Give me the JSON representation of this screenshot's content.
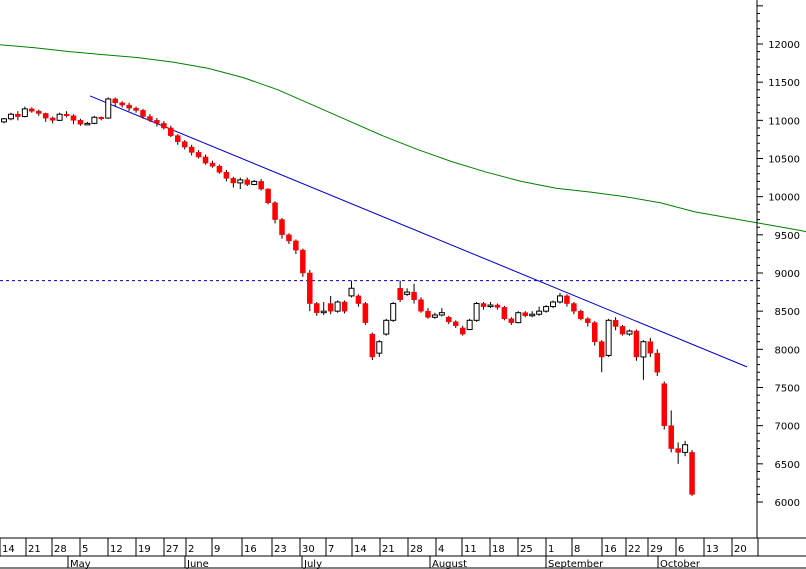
{
  "chart_data": {
    "type": "candlestick",
    "y_axis": {
      "position": "right",
      "ticks": [
        6000,
        6500,
        7000,
        7500,
        8000,
        8500,
        9000,
        9500,
        10000,
        10500,
        11000,
        11500,
        12000
      ],
      "ylim": [
        5700,
        12550
      ]
    },
    "x_axis": {
      "day_ticks": [
        "14",
        "21",
        "28",
        "5",
        "12",
        "19",
        "27",
        "2",
        "9",
        "16",
        "23",
        "30",
        "7",
        "14",
        "21",
        "28",
        "4",
        "11",
        "18",
        "25",
        "1",
        "8",
        "16",
        "22",
        "29",
        "6",
        "13",
        "20"
      ],
      "months": [
        "May",
        "June",
        "July",
        "August",
        "September",
        "October"
      ]
    },
    "horizontal_line": {
      "value": 8900,
      "style": "dashed",
      "color": "#0000cc"
    },
    "trend_line": {
      "from": [
        20,
        11320
      ],
      "to": [
        142,
        7770
      ],
      "color": "#0000cc"
    },
    "moving_average": {
      "color": "#008000",
      "points": [
        [
          0,
          11990
        ],
        [
          5,
          11950
        ],
        [
          10,
          11900
        ],
        [
          15,
          11860
        ],
        [
          20,
          11820
        ],
        [
          25,
          11760
        ],
        [
          30,
          11680
        ],
        [
          35,
          11560
        ],
        [
          40,
          11400
        ],
        [
          45,
          11200
        ],
        [
          50,
          11000
        ],
        [
          55,
          10800
        ],
        [
          60,
          10620
        ],
        [
          65,
          10460
        ],
        [
          70,
          10320
        ],
        [
          75,
          10200
        ],
        [
          80,
          10110
        ],
        [
          85,
          10060
        ],
        [
          90,
          10000
        ],
        [
          95,
          9920
        ],
        [
          100,
          9800
        ],
        [
          105,
          9720
        ],
        [
          110,
          9640
        ],
        [
          115,
          9560
        ],
        [
          118,
          9500
        ]
      ]
    },
    "candles": [
      [
        0,
        10980,
        11020,
        10960,
        11030,
        "up"
      ],
      [
        1,
        11020,
        11080,
        11000,
        11100,
        "up"
      ],
      [
        2,
        11080,
        11050,
        11000,
        11120,
        "down"
      ],
      [
        3,
        11050,
        11150,
        11040,
        11180,
        "up"
      ],
      [
        4,
        11150,
        11120,
        11100,
        11170,
        "down"
      ],
      [
        5,
        11120,
        11090,
        11060,
        11140,
        "down"
      ],
      [
        6,
        11090,
        11030,
        10980,
        11100,
        "down"
      ],
      [
        7,
        11030,
        11000,
        10960,
        11050,
        "down"
      ],
      [
        8,
        11000,
        11080,
        10990,
        11100,
        "up"
      ],
      [
        9,
        11080,
        11060,
        11040,
        11120,
        "down"
      ],
      [
        10,
        11060,
        11000,
        10950,
        11080,
        "down"
      ],
      [
        11,
        11000,
        10950,
        10930,
        11020,
        "down"
      ],
      [
        12,
        10950,
        10960,
        10940,
        10980,
        "up"
      ],
      [
        13,
        10960,
        11040,
        10950,
        11060,
        "up"
      ],
      [
        14,
        11040,
        11030,
        11000,
        11050,
        "down"
      ],
      [
        15,
        11030,
        11280,
        11020,
        11300,
        "up"
      ],
      [
        16,
        11280,
        11230,
        11180,
        11300,
        "down"
      ],
      [
        17,
        11230,
        11200,
        11170,
        11250,
        "down"
      ],
      [
        18,
        11200,
        11160,
        11120,
        11230,
        "down"
      ],
      [
        19,
        11160,
        11130,
        11100,
        11180,
        "down"
      ],
      [
        20,
        11130,
        11050,
        11020,
        11150,
        "down"
      ],
      [
        21,
        11050,
        11000,
        10980,
        11080,
        "down"
      ],
      [
        22,
        11000,
        10960,
        10920,
        11030,
        "down"
      ],
      [
        23,
        10960,
        10900,
        10880,
        10990,
        "down"
      ],
      [
        24,
        10900,
        10800,
        10780,
        10930,
        "down"
      ],
      [
        25,
        10800,
        10720,
        10680,
        10820,
        "down"
      ],
      [
        26,
        10720,
        10650,
        10620,
        10740,
        "down"
      ],
      [
        27,
        10650,
        10580,
        10540,
        10680,
        "down"
      ],
      [
        28,
        10580,
        10520,
        10500,
        10610,
        "down"
      ],
      [
        29,
        10520,
        10440,
        10420,
        10550,
        "down"
      ],
      [
        30,
        10440,
        10400,
        10380,
        10470,
        "down"
      ],
      [
        31,
        10400,
        10320,
        10300,
        10420,
        "down"
      ],
      [
        32,
        10320,
        10240,
        10200,
        10350,
        "down"
      ],
      [
        33,
        10240,
        10180,
        10120,
        10260,
        "down"
      ],
      [
        34,
        10180,
        10220,
        10100,
        10250,
        "up"
      ],
      [
        35,
        10220,
        10160,
        10140,
        10250,
        "down"
      ],
      [
        36,
        10160,
        10200,
        10150,
        10220,
        "up"
      ],
      [
        37,
        10200,
        10100,
        10080,
        10230,
        "down"
      ],
      [
        38,
        10100,
        9920,
        9900,
        10110,
        "down"
      ],
      [
        39,
        9920,
        9700,
        9650,
        9940,
        "down"
      ],
      [
        40,
        9700,
        9500,
        9450,
        9720,
        "down"
      ],
      [
        41,
        9500,
        9420,
        9380,
        9520,
        "down"
      ],
      [
        42,
        9420,
        9300,
        9250,
        9440,
        "down"
      ],
      [
        43,
        9300,
        9000,
        8950,
        9320,
        "down"
      ],
      [
        44,
        9000,
        8600,
        8500,
        9040,
        "down"
      ],
      [
        45,
        8600,
        8480,
        8440,
        8620,
        "down"
      ],
      [
        46,
        8480,
        8500,
        8450,
        8620,
        "up"
      ],
      [
        47,
        8600,
        8500,
        8460,
        8700,
        "down"
      ],
      [
        48,
        8500,
        8620,
        8480,
        8640,
        "up"
      ],
      [
        49,
        8620,
        8500,
        8470,
        8640,
        "down"
      ],
      [
        50,
        8700,
        8800,
        8680,
        8900,
        "up"
      ],
      [
        51,
        8700,
        8600,
        8560,
        8720,
        "down"
      ],
      [
        52,
        8600,
        8350,
        8320,
        8620,
        "down"
      ],
      [
        53,
        8200,
        7900,
        7860,
        8220,
        "down"
      ],
      [
        54,
        7950,
        8100,
        7900,
        8120,
        "up"
      ],
      [
        55,
        8200,
        8380,
        8180,
        8400,
        "up"
      ],
      [
        56,
        8380,
        8600,
        8360,
        8620,
        "up"
      ],
      [
        57,
        8800,
        8650,
        8620,
        8900,
        "down"
      ],
      [
        58,
        8720,
        8750,
        8700,
        8800,
        "up"
      ],
      [
        59,
        8750,
        8650,
        8600,
        8860,
        "down"
      ],
      [
        60,
        8650,
        8500,
        8480,
        8680,
        "down"
      ],
      [
        61,
        8500,
        8420,
        8400,
        8540,
        "down"
      ],
      [
        62,
        8420,
        8450,
        8400,
        8480,
        "up"
      ],
      [
        63,
        8450,
        8480,
        8430,
        8540,
        "up"
      ],
      [
        64,
        8420,
        8360,
        8330,
        8440,
        "down"
      ],
      [
        65,
        8360,
        8310,
        8280,
        8380,
        "down"
      ],
      [
        66,
        8280,
        8200,
        8180,
        8310,
        "down"
      ],
      [
        67,
        8260,
        8380,
        8250,
        8400,
        "up"
      ],
      [
        68,
        8380,
        8600,
        8360,
        8620,
        "up"
      ],
      [
        69,
        8600,
        8560,
        8520,
        8620,
        "down"
      ],
      [
        70,
        8560,
        8580,
        8540,
        8620,
        "up"
      ],
      [
        71,
        8580,
        8550,
        8520,
        8600,
        "down"
      ],
      [
        72,
        8550,
        8400,
        8380,
        8570,
        "down"
      ],
      [
        73,
        8400,
        8350,
        8320,
        8420,
        "down"
      ],
      [
        74,
        8350,
        8480,
        8340,
        8500,
        "up"
      ],
      [
        75,
        8480,
        8440,
        8420,
        8500,
        "down"
      ],
      [
        76,
        8440,
        8460,
        8420,
        8500,
        "up"
      ],
      [
        77,
        8460,
        8500,
        8440,
        8560,
        "up"
      ],
      [
        78,
        8500,
        8560,
        8480,
        8580,
        "up"
      ],
      [
        79,
        8560,
        8620,
        8540,
        8640,
        "up"
      ],
      [
        80,
        8620,
        8700,
        8600,
        8740,
        "up"
      ],
      [
        81,
        8700,
        8600,
        8560,
        8720,
        "down"
      ],
      [
        82,
        8600,
        8500,
        8460,
        8620,
        "down"
      ],
      [
        83,
        8500,
        8400,
        8380,
        8520,
        "down"
      ],
      [
        84,
        8400,
        8350,
        8300,
        8420,
        "down"
      ],
      [
        85,
        8350,
        8100,
        8050,
        8370,
        "down"
      ],
      [
        86,
        8100,
        7900,
        7700,
        8120,
        "down"
      ],
      [
        87,
        7920,
        8380,
        7900,
        8400,
        "up"
      ],
      [
        88,
        8380,
        8300,
        8250,
        8420,
        "down"
      ],
      [
        89,
        8300,
        8200,
        8180,
        8320,
        "down"
      ],
      [
        90,
        8200,
        8240,
        8180,
        8260,
        "up"
      ],
      [
        91,
        8240,
        7900,
        7850,
        8260,
        "down"
      ],
      [
        92,
        7900,
        8100,
        7600,
        8120,
        "up"
      ],
      [
        93,
        8100,
        7950,
        7900,
        8150,
        "down"
      ],
      [
        94,
        7950,
        7700,
        7650,
        8000,
        "down"
      ],
      [
        95,
        7550,
        7000,
        6950,
        7580,
        "down"
      ],
      [
        96,
        7000,
        6700,
        6650,
        7200,
        "down"
      ],
      [
        97,
        6700,
        6650,
        6500,
        6780,
        "down"
      ],
      [
        98,
        6650,
        6750,
        6600,
        6800,
        "up"
      ],
      [
        99,
        6650,
        6100,
        6080,
        6680,
        "down"
      ]
    ]
  }
}
